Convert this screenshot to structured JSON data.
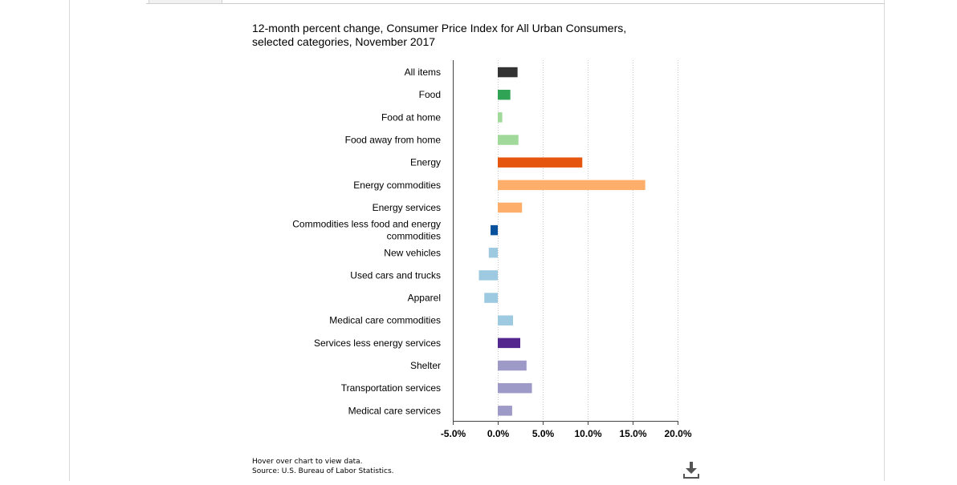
{
  "chart_data": {
    "type": "bar",
    "orientation": "horizontal",
    "title_lines": [
      "12-month percent change, Consumer Price Index for All Urban Consumers,",
      "selected categories, November 2017"
    ],
    "categories": [
      [
        "All items"
      ],
      [
        "Food"
      ],
      [
        "Food at home"
      ],
      [
        "Food away from home"
      ],
      [
        "Energy"
      ],
      [
        "Energy commodities"
      ],
      [
        "Energy services"
      ],
      [
        "Commodities less food and energy",
        "commodities"
      ],
      [
        "New vehicles"
      ],
      [
        "Used cars and trucks"
      ],
      [
        "Apparel"
      ],
      [
        "Medical care commodities"
      ],
      [
        "Services less energy services"
      ],
      [
        "Shelter"
      ],
      [
        "Transportation services"
      ],
      [
        "Medical care services"
      ]
    ],
    "values": [
      2.2,
      1.4,
      0.5,
      2.3,
      9.4,
      16.4,
      2.7,
      -0.8,
      -1.0,
      -2.1,
      -1.5,
      1.7,
      2.5,
      3.2,
      3.8,
      1.6
    ],
    "colors": [
      "#333333",
      "#31a354",
      "#a1d99b",
      "#a1d99b",
      "#e6550d",
      "#fdae6b",
      "#fdae6b",
      "#08519c",
      "#9ecae1",
      "#9ecae1",
      "#9ecae1",
      "#9ecae1",
      "#54278f",
      "#9e9ac8",
      "#9e9ac8",
      "#9e9ac8"
    ],
    "xlim": [
      -5,
      20
    ],
    "xticks": [
      -5,
      0,
      5,
      10,
      15,
      20
    ],
    "xtick_labels": [
      "-5.0%",
      "0.0%",
      "5.0%",
      "10.0%",
      "15.0%",
      "20.0%"
    ],
    "grid": "vertical-dotted",
    "xlabel": "",
    "ylabel": ""
  },
  "footnotes": {
    "hover_note": "Hover over chart to view data.",
    "source": "Source: U.S. Bureau of Labor Statistics."
  },
  "icons": {
    "download": "download-icon"
  }
}
